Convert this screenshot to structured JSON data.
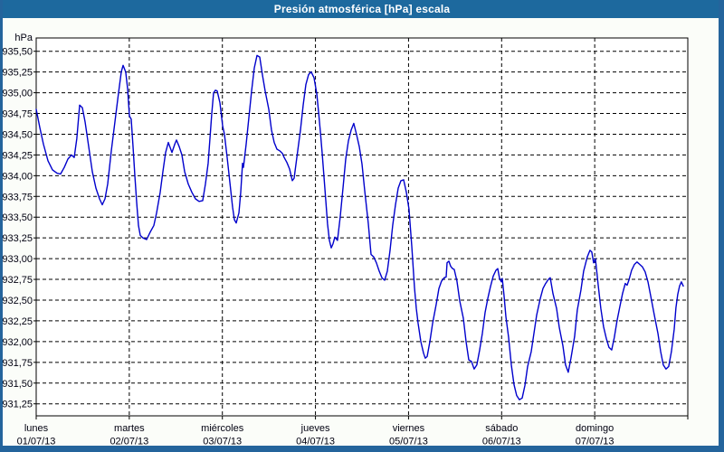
{
  "window": {
    "title": "Presión atmosférica [hPa] escala"
  },
  "colors": {
    "titlebar_bg": "#1d699e",
    "titlebar_text": "#ffffff",
    "frame": "#24649c",
    "background": "#fbfdf9",
    "plot_background": "#ffffff",
    "plot_border": "#000000",
    "grid": "#000000",
    "axis_text": "#000010",
    "line": "#0000cc"
  },
  "chart_data": {
    "type": "line",
    "title": "Presión atmosférica [hPa] escala",
    "ylabel": "hPa",
    "y_min": 931.25,
    "y_max": 935.5,
    "y_step": 0.25,
    "y_tick_labels": [
      "935,50",
      "935,25",
      "935,00",
      "934,75",
      "934,50",
      "934,25",
      "934,00",
      "933,75",
      "933,50",
      "933,25",
      "933,00",
      "932,75",
      "932,50",
      "932,25",
      "932,00",
      "931,75",
      "931,50",
      "931,25"
    ],
    "x_range_days": [
      0,
      7
    ],
    "x_categories": [
      {
        "day": "lunes",
        "date": "01/07/13"
      },
      {
        "day": "martes",
        "date": "02/07/13"
      },
      {
        "day": "miércoles",
        "date": "03/07/13"
      },
      {
        "day": "jueves",
        "date": "04/07/13"
      },
      {
        "day": "viernes",
        "date": "05/07/13"
      },
      {
        "day": "sábado",
        "date": "06/07/13"
      },
      {
        "day": "domingo",
        "date": "07/07/13"
      }
    ],
    "grid_style": "dashed",
    "legend": "none",
    "series": [
      {
        "name": "Presión atmosférica [hPa]",
        "points": [
          [
            0,
            934.8
          ],
          [
            0.039,
            934.58
          ],
          [
            0.078,
            934.38
          ],
          [
            0.126,
            934.18
          ],
          [
            0.175,
            934.07
          ],
          [
            0.224,
            934.03
          ],
          [
            0.262,
            934.02
          ],
          [
            0.301,
            934.1
          ],
          [
            0.34,
            934.2
          ],
          [
            0.379,
            934.25
          ],
          [
            0.408,
            934.22
          ],
          [
            0.437,
            934.45
          ],
          [
            0.467,
            934.85
          ],
          [
            0.496,
            934.82
          ],
          [
            0.525,
            934.65
          ],
          [
            0.564,
            934.35
          ],
          [
            0.603,
            934.05
          ],
          [
            0.642,
            933.85
          ],
          [
            0.681,
            933.72
          ],
          [
            0.71,
            933.65
          ],
          [
            0.739,
            933.72
          ],
          [
            0.768,
            933.9
          ],
          [
            0.807,
            934.3
          ],
          [
            0.846,
            934.65
          ],
          [
            0.885,
            935.0
          ],
          [
            0.914,
            935.25
          ],
          [
            0.933,
            935.33
          ],
          [
            0.962,
            935.25
          ],
          [
            0.982,
            935.05
          ],
          [
            1.001,
            934.72
          ],
          [
            1.021,
            934.68
          ],
          [
            1.04,
            934.35
          ],
          [
            1.06,
            934.0
          ],
          [
            1.079,
            933.68
          ],
          [
            1.099,
            933.4
          ],
          [
            1.118,
            933.28
          ],
          [
            1.147,
            933.25
          ],
          [
            1.186,
            933.23
          ],
          [
            1.225,
            933.32
          ],
          [
            1.264,
            933.4
          ],
          [
            1.293,
            933.55
          ],
          [
            1.332,
            933.8
          ],
          [
            1.361,
            934.05
          ],
          [
            1.39,
            934.28
          ],
          [
            1.419,
            934.4
          ],
          [
            1.458,
            934.28
          ],
          [
            1.488,
            934.38
          ],
          [
            1.507,
            934.43
          ],
          [
            1.536,
            934.35
          ],
          [
            1.565,
            934.25
          ],
          [
            1.594,
            934.05
          ],
          [
            1.633,
            933.9
          ],
          [
            1.672,
            933.8
          ],
          [
            1.711,
            933.72
          ],
          [
            1.75,
            933.69
          ],
          [
            1.789,
            933.7
          ],
          [
            1.818,
            933.9
          ],
          [
            1.847,
            934.15
          ],
          [
            1.867,
            934.45
          ],
          [
            1.886,
            934.75
          ],
          [
            1.906,
            935.0
          ],
          [
            1.925,
            935.03
          ],
          [
            1.944,
            935.02
          ],
          [
            1.974,
            934.88
          ],
          [
            2.003,
            934.6
          ],
          [
            2.022,
            934.5
          ],
          [
            2.051,
            934.22
          ],
          [
            2.081,
            933.92
          ],
          [
            2.11,
            933.62
          ],
          [
            2.129,
            933.47
          ],
          [
            2.149,
            933.43
          ],
          [
            2.178,
            933.55
          ],
          [
            2.197,
            933.8
          ],
          [
            2.217,
            934.15
          ],
          [
            2.226,
            934.1
          ],
          [
            2.256,
            934.38
          ],
          [
            2.285,
            934.7
          ],
          [
            2.314,
            935.02
          ],
          [
            2.343,
            935.3
          ],
          [
            2.372,
            935.45
          ],
          [
            2.401,
            935.43
          ],
          [
            2.43,
            935.22
          ],
          [
            2.46,
            935.02
          ],
          [
            2.499,
            934.8
          ],
          [
            2.528,
            934.55
          ],
          [
            2.557,
            934.4
          ],
          [
            2.586,
            934.32
          ],
          [
            2.615,
            934.3
          ],
          [
            2.644,
            934.27
          ],
          [
            2.664,
            934.22
          ],
          [
            2.693,
            934.16
          ],
          [
            2.722,
            934.08
          ],
          [
            2.751,
            933.94
          ],
          [
            2.771,
            933.97
          ],
          [
            2.8,
            934.22
          ],
          [
            2.839,
            934.55
          ],
          [
            2.868,
            934.85
          ],
          [
            2.897,
            935.1
          ],
          [
            2.926,
            935.22
          ],
          [
            2.955,
            935.25
          ],
          [
            2.985,
            935.18
          ],
          [
            3.014,
            934.99
          ],
          [
            3.033,
            934.77
          ],
          [
            3.053,
            934.53
          ],
          [
            3.072,
            934.27
          ],
          [
            3.091,
            934.0
          ],
          [
            3.111,
            933.7
          ],
          [
            3.13,
            933.42
          ],
          [
            3.15,
            933.22
          ],
          [
            3.169,
            933.13
          ],
          [
            3.189,
            933.18
          ],
          [
            3.208,
            933.26
          ],
          [
            3.237,
            933.22
          ],
          [
            3.266,
            933.5
          ],
          [
            3.296,
            933.85
          ],
          [
            3.325,
            934.2
          ],
          [
            3.354,
            934.42
          ],
          [
            3.383,
            934.55
          ],
          [
            3.412,
            934.63
          ],
          [
            3.441,
            934.5
          ],
          [
            3.471,
            934.35
          ],
          [
            3.5,
            934.14
          ],
          [
            3.529,
            933.82
          ],
          [
            3.568,
            933.42
          ],
          [
            3.597,
            933.05
          ],
          [
            3.626,
            933.02
          ],
          [
            3.655,
            932.95
          ],
          [
            3.685,
            932.85
          ],
          [
            3.714,
            932.77
          ],
          [
            3.743,
            932.74
          ],
          [
            3.772,
            932.85
          ],
          [
            3.801,
            933.1
          ],
          [
            3.83,
            933.4
          ],
          [
            3.86,
            933.65
          ],
          [
            3.889,
            933.85
          ],
          [
            3.918,
            933.94
          ],
          [
            3.947,
            933.95
          ],
          [
            3.976,
            933.8
          ],
          [
            4.005,
            933.6
          ],
          [
            4.035,
            933.15
          ],
          [
            4.064,
            932.65
          ],
          [
            4.083,
            932.4
          ],
          [
            4.103,
            932.22
          ],
          [
            4.132,
            932.0
          ],
          [
            4.161,
            931.86
          ],
          [
            4.18,
            931.8
          ],
          [
            4.2,
            931.82
          ],
          [
            4.229,
            932.0
          ],
          [
            4.258,
            932.22
          ],
          [
            4.297,
            932.45
          ],
          [
            4.326,
            932.64
          ],
          [
            4.355,
            932.73
          ],
          [
            4.384,
            932.77
          ],
          [
            4.404,
            932.78
          ],
          [
            4.414,
            932.95
          ],
          [
            4.433,
            932.97
          ],
          [
            4.452,
            932.91
          ],
          [
            4.472,
            932.88
          ],
          [
            4.491,
            932.87
          ],
          [
            4.52,
            932.73
          ],
          [
            4.55,
            932.49
          ],
          [
            4.589,
            932.28
          ],
          [
            4.618,
            932.0
          ],
          [
            4.647,
            931.78
          ],
          [
            4.676,
            931.76
          ],
          [
            4.705,
            931.67
          ],
          [
            4.734,
            931.72
          ],
          [
            4.764,
            931.9
          ],
          [
            4.793,
            932.1
          ],
          [
            4.822,
            932.35
          ],
          [
            4.851,
            932.52
          ],
          [
            4.88,
            932.66
          ],
          [
            4.91,
            932.79
          ],
          [
            4.939,
            932.86
          ],
          [
            4.958,
            932.88
          ],
          [
            4.978,
            932.76
          ],
          [
            4.997,
            932.72
          ],
          [
            5.007,
            932.76
          ],
          [
            5.026,
            932.55
          ],
          [
            5.046,
            932.3
          ],
          [
            5.075,
            932.05
          ],
          [
            5.104,
            931.72
          ],
          [
            5.133,
            931.48
          ],
          [
            5.162,
            931.35
          ],
          [
            5.191,
            931.3
          ],
          [
            5.221,
            931.32
          ],
          [
            5.25,
            931.47
          ],
          [
            5.279,
            931.7
          ],
          [
            5.318,
            931.88
          ],
          [
            5.347,
            932.1
          ],
          [
            5.376,
            932.32
          ],
          [
            5.415,
            932.52
          ],
          [
            5.444,
            932.64
          ],
          [
            5.473,
            932.7
          ],
          [
            5.502,
            932.75
          ],
          [
            5.522,
            932.77
          ],
          [
            5.551,
            932.58
          ],
          [
            5.59,
            932.4
          ],
          [
            5.619,
            932.17
          ],
          [
            5.658,
            931.95
          ],
          [
            5.687,
            931.72
          ],
          [
            5.716,
            931.63
          ],
          [
            5.745,
            931.8
          ],
          [
            5.784,
            932.06
          ],
          [
            5.813,
            932.38
          ],
          [
            5.852,
            932.62
          ],
          [
            5.881,
            932.85
          ],
          [
            5.92,
            933.02
          ],
          [
            5.949,
            933.1
          ],
          [
            5.968,
            933.08
          ],
          [
            5.988,
            932.95
          ],
          [
            6.007,
            933.0
          ],
          [
            6.036,
            932.7
          ],
          [
            6.066,
            932.4
          ],
          [
            6.095,
            932.18
          ],
          [
            6.124,
            932.04
          ],
          [
            6.153,
            931.93
          ],
          [
            6.182,
            931.9
          ],
          [
            6.211,
            932.05
          ],
          [
            6.24,
            932.25
          ],
          [
            6.27,
            932.42
          ],
          [
            6.299,
            932.58
          ],
          [
            6.328,
            932.7
          ],
          [
            6.348,
            932.68
          ],
          [
            6.367,
            932.74
          ],
          [
            6.396,
            932.86
          ],
          [
            6.426,
            932.93
          ],
          [
            6.455,
            932.96
          ],
          [
            6.484,
            932.93
          ],
          [
            6.513,
            932.9
          ],
          [
            6.542,
            932.84
          ],
          [
            6.572,
            932.72
          ],
          [
            6.601,
            932.55
          ],
          [
            6.64,
            932.32
          ],
          [
            6.679,
            932.1
          ],
          [
            6.708,
            931.88
          ],
          [
            6.737,
            931.72
          ],
          [
            6.766,
            931.67
          ],
          [
            6.795,
            931.7
          ],
          [
            6.824,
            931.88
          ],
          [
            6.854,
            932.15
          ],
          [
            6.873,
            932.41
          ],
          [
            6.892,
            932.57
          ],
          [
            6.912,
            932.67
          ],
          [
            6.931,
            932.72
          ],
          [
            6.951,
            932.67
          ]
        ]
      }
    ]
  }
}
